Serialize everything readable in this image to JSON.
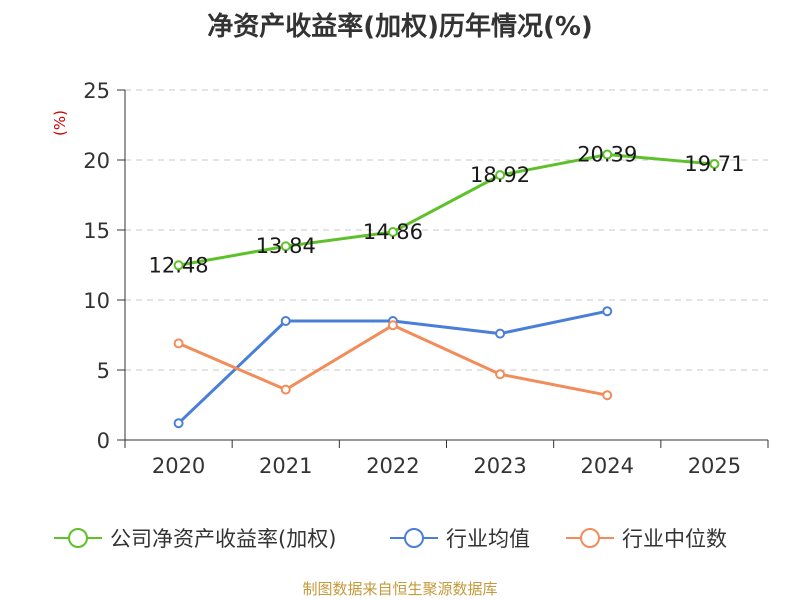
{
  "chart_data": {
    "type": "line",
    "title": "净资产收益率(加权)历年情况(%)",
    "ylabel": "(%)",
    "xlabel": "",
    "categories": [
      "2020",
      "2021",
      "2022",
      "2023",
      "2024",
      "2025"
    ],
    "ylim": [
      0,
      25
    ],
    "yticks": [
      0,
      5,
      10,
      15,
      20,
      25
    ],
    "series": [
      {
        "name": "公司净资产收益率(加权)",
        "color": "#5ec12a",
        "values": [
          12.48,
          13.84,
          14.86,
          18.92,
          20.39,
          19.71
        ],
        "labels": [
          "12.48",
          "13.84",
          "14.86",
          "18.92",
          "20.39",
          "19.71"
        ]
      },
      {
        "name": "行业均值",
        "color": "#4a7fd8",
        "values": [
          1.2,
          8.5,
          8.5,
          7.6,
          9.2,
          null
        ]
      },
      {
        "name": "行业中位数",
        "color": "#f28c5a",
        "values": [
          6.9,
          3.6,
          8.2,
          4.7,
          3.2,
          null
        ]
      }
    ],
    "legend_position": "bottom",
    "grid": true
  },
  "footer": {
    "source": "制图数据来自恒生聚源数据库"
  }
}
